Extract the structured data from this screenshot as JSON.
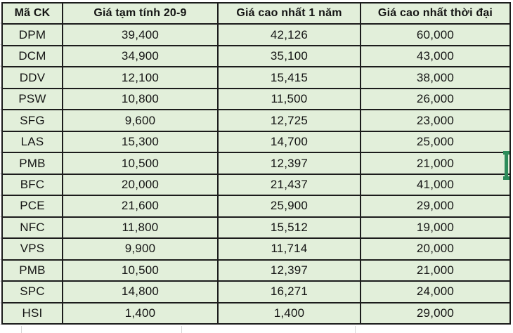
{
  "table": {
    "columns": [
      "Mã CK",
      "Giá tạm tính 20-9",
      "Giá cao nhất 1 năm",
      "Giá cao nhất thời đại"
    ],
    "rows": [
      [
        "DPM",
        "39,400",
        "42,126",
        "60,000"
      ],
      [
        "DCM",
        "34,900",
        "35,100",
        "43,000"
      ],
      [
        "DDV",
        "12,100",
        "15,415",
        "38,000"
      ],
      [
        "PSW",
        "10,800",
        "11,500",
        "26,000"
      ],
      [
        "SFG",
        "9,600",
        "12,725",
        "23,000"
      ],
      [
        "LAS",
        "15,300",
        "14,700",
        "25,000"
      ],
      [
        "PMB",
        "10,500",
        "12,397",
        "21,000"
      ],
      [
        "BFC",
        "20,000",
        "21,437",
        "41,000"
      ],
      [
        "PCE",
        "21,600",
        "25,900",
        "29,000"
      ],
      [
        "NFC",
        "11,800",
        "15,512",
        "19,000"
      ],
      [
        "VPS",
        "9,900",
        "11,714",
        "20,000"
      ],
      [
        "PMB",
        "10,500",
        "12,397",
        "21,000"
      ],
      [
        "SPC",
        "14,800",
        "16,271",
        "24,000"
      ],
      [
        "HSI",
        "1,400",
        "1,400",
        "29,000"
      ]
    ],
    "selected_row_index": 6
  },
  "colors": {
    "cell_fill": "#e2efda",
    "table_border": "#1c1c1c",
    "text": "#141414",
    "selection_green": "#2d8c5a",
    "sheet_gridline": "#d6d6d6"
  }
}
